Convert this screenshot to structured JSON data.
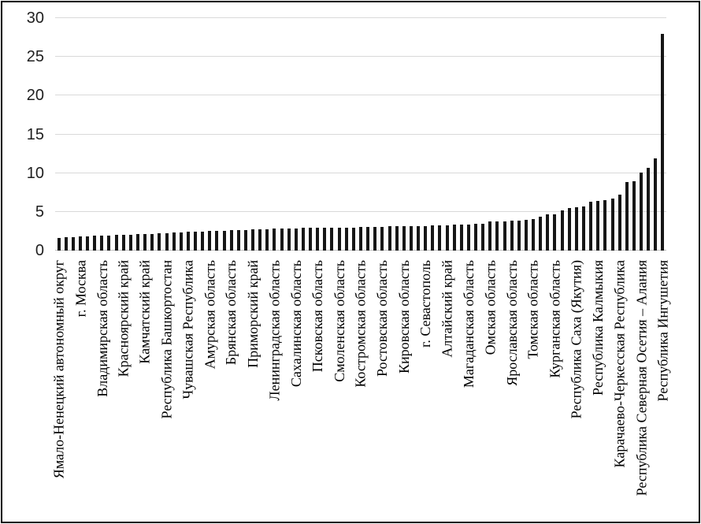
{
  "window": {
    "background": "#ffffff",
    "border_color": "#000000"
  },
  "chart_data": {
    "type": "bar",
    "title": "",
    "xlabel": "",
    "ylabel": "",
    "ylim": [
      0,
      30
    ],
    "yticks": [
      0,
      5,
      10,
      15,
      20,
      25,
      30
    ],
    "grid": true,
    "legend": "none",
    "bar_count": 85,
    "label_interval": 3,
    "categories": [
      "Ямало-Ненецкий автономный округ",
      "г. Москва",
      "Владимирская область",
      "Красноярский край",
      "Камчатский край",
      "Республика Башкортостан",
      "Чувашская Республика",
      "Амурская область",
      "Брянская область",
      "Приморский край",
      "Ленинградская область",
      "Сахалинская область",
      "Псковская область",
      "Смоленская область",
      "Костромская область",
      "Ростовская область",
      "Кировская область",
      "г. Севастополь",
      "Алтайский край",
      "Магаданская область",
      "Омская область",
      "Ярославская область",
      "Томская область",
      "Курганская область",
      "Республика Саха (Якутия)",
      "Республика Калмыкия",
      "Карачаево-Черкесская Республика",
      "Республика Северная Осетия – Алания",
      "Республика Ингушетия"
    ],
    "values": [
      1.6,
      1.7,
      1.7,
      1.8,
      1.8,
      1.9,
      1.9,
      1.9,
      2.0,
      2.0,
      2.0,
      2.1,
      2.1,
      2.1,
      2.2,
      2.2,
      2.3,
      2.3,
      2.4,
      2.4,
      2.4,
      2.5,
      2.5,
      2.5,
      2.6,
      2.6,
      2.6,
      2.7,
      2.7,
      2.7,
      2.8,
      2.8,
      2.8,
      2.8,
      2.9,
      2.9,
      2.9,
      2.9,
      3.0,
      3.0,
      3.0,
      3.0,
      3.1,
      3.1,
      3.1,
      3.1,
      3.2,
      3.2,
      3.2,
      3.2,
      3.2,
      3.2,
      3.3,
      3.3,
      3.3,
      3.4,
      3.4,
      3.4,
      3.5,
      3.5,
      3.8,
      3.8,
      3.8,
      3.9,
      3.9,
      4.0,
      4.1,
      4.4,
      4.7,
      4.7,
      5.2,
      5.5,
      5.6,
      5.7,
      6.3,
      6.4,
      6.5,
      6.7,
      7.2,
      8.8,
      9.0,
      10.1,
      10.7,
      11.9,
      28.0
    ],
    "bar_color": "#161616",
    "gridline_color": "#d9d9d9",
    "axis_line_color": "#bfbfbf",
    "tick_label_color": "#1f1f1f",
    "category_label_color": "#000000"
  }
}
